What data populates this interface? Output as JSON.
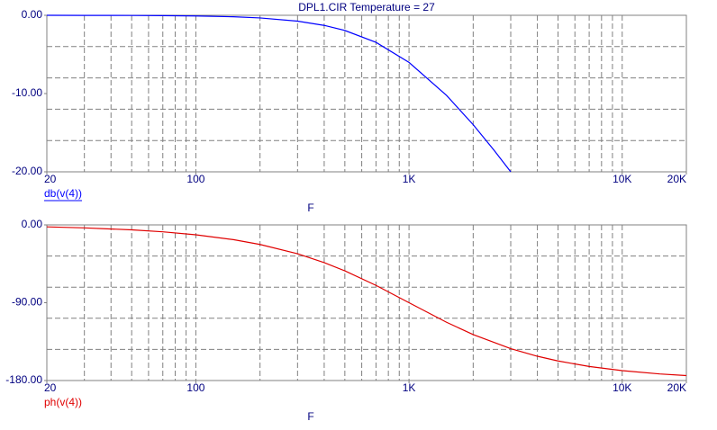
{
  "chart_data": [
    {
      "type": "line",
      "title": "DPL1.CIR Temperature = 27",
      "x_label": "F",
      "log_x": true,
      "xlim": [
        20,
        20000
      ],
      "xticks": [
        20,
        100,
        {
          "value": 1000,
          "label": "1K"
        },
        {
          "value": 10000,
          "label": "10K"
        },
        {
          "value": 20000,
          "label": "20K"
        }
      ],
      "xgrid": [
        30,
        40,
        50,
        60,
        70,
        80,
        90,
        100,
        200,
        300,
        400,
        500,
        600,
        700,
        800,
        900,
        1000,
        2000,
        3000,
        4000,
        5000,
        6000,
        7000,
        8000,
        9000,
        10000
      ],
      "ylim": [
        -20,
        0
      ],
      "yticks": [
        {
          "value": 0,
          "label": "0.00"
        },
        {
          "value": -10,
          "label": "-10.00"
        },
        {
          "value": -20,
          "label": "-20.00"
        }
      ],
      "ygrid": [
        -4,
        -8,
        -12,
        -16
      ],
      "x": [
        20,
        30,
        50,
        70,
        100,
        150,
        200,
        300,
        400,
        500,
        700,
        1000,
        1500,
        2000,
        2500,
        3000
      ],
      "series": [
        {
          "name": "db(v(4))",
          "color": "#0000ff",
          "values": [
            0,
            -0.01,
            -0.02,
            -0.04,
            -0.09,
            -0.19,
            -0.34,
            -0.75,
            -1.29,
            -1.94,
            -3.46,
            -6.02,
            -10.24,
            -13.98,
            -17.21,
            -20
          ]
        }
      ]
    },
    {
      "type": "line",
      "x_label": "F",
      "log_x": true,
      "xlim": [
        20,
        20000
      ],
      "xticks": [
        20,
        100,
        {
          "value": 1000,
          "label": "1K"
        },
        {
          "value": 10000,
          "label": "10K"
        },
        {
          "value": 20000,
          "label": "20K"
        }
      ],
      "xgrid": [
        30,
        40,
        50,
        60,
        70,
        80,
        90,
        100,
        200,
        300,
        400,
        500,
        600,
        700,
        800,
        900,
        1000,
        2000,
        3000,
        4000,
        5000,
        6000,
        7000,
        8000,
        9000,
        10000
      ],
      "ylim": [
        -180,
        0
      ],
      "yticks": [
        {
          "value": 0,
          "label": "0.00"
        },
        {
          "value": -90,
          "label": "-90.00"
        },
        {
          "value": -180,
          "label": "-180.00"
        }
      ],
      "ygrid": [
        -36,
        -72,
        -108,
        -144
      ],
      "x": [
        20,
        30,
        50,
        70,
        100,
        150,
        200,
        300,
        400,
        500,
        700,
        1000,
        1500,
        2000,
        3000,
        4000,
        5000,
        7000,
        10000,
        15000,
        20000
      ],
      "series": [
        {
          "name": "ph(v(4))",
          "color": "#e00000",
          "values": [
            -2.29,
            -3.44,
            -5.72,
            -8.01,
            -11.42,
            -17.06,
            -22.62,
            -33.4,
            -43.6,
            -53.13,
            -69.98,
            -90,
            -112.62,
            -126.87,
            -143.13,
            -151.93,
            -157.38,
            -163.74,
            -168.58,
            -172.37,
            -174.28
          ]
        }
      ]
    }
  ]
}
